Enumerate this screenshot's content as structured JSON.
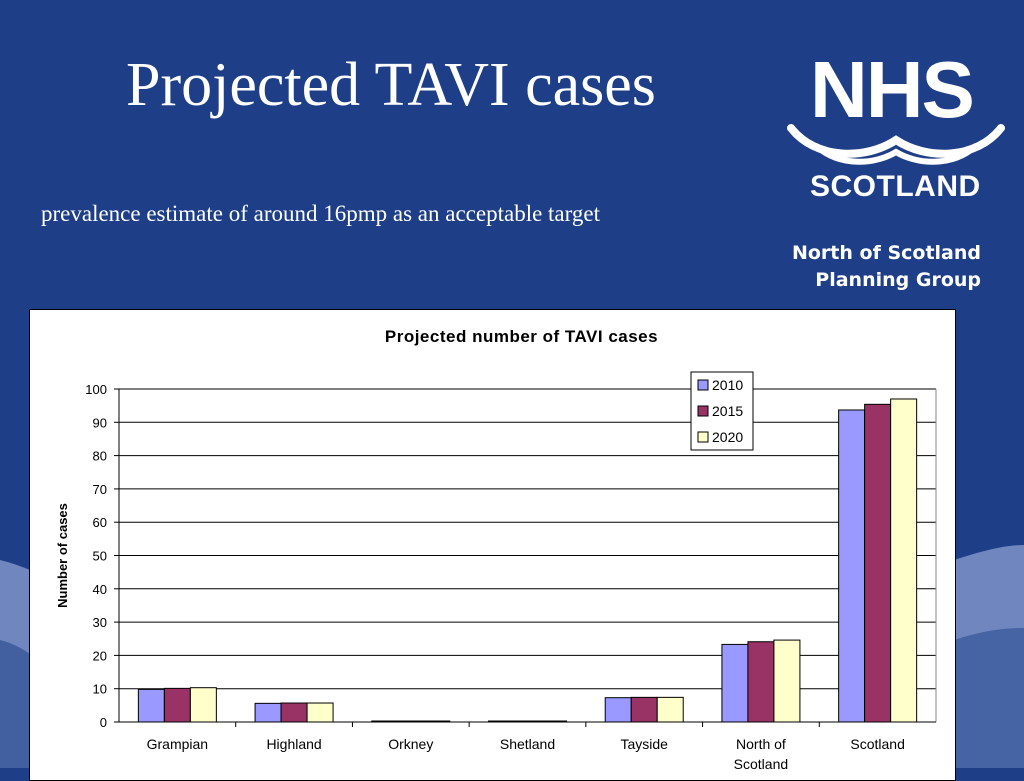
{
  "slide": {
    "title": "Projected TAVI cases",
    "subtitle": "prevalence estimate of around 16pmp as an acceptable target",
    "org_name_line1": "North of Scotland",
    "org_name_line2": "Planning Group"
  },
  "logo": {
    "nhs": "NHS",
    "scotland": "SCOTLAND"
  },
  "colors": {
    "background": "#1e3f87",
    "wave": "#6f86bf",
    "series_2010": "#9999ff",
    "series_2015": "#993366",
    "series_2020": "#ffffcc"
  },
  "chart_data": {
    "type": "bar",
    "title": "Projected number of TAVI cases",
    "xlabel": "",
    "ylabel": "Number of cases",
    "ylim": [
      0,
      100
    ],
    "yticks": [
      0,
      10,
      20,
      30,
      40,
      50,
      60,
      70,
      80,
      90,
      100
    ],
    "grid": true,
    "legend_position": "top-right",
    "categories": [
      "Grampian",
      "Highland",
      "Orkney",
      "Shetland",
      "Tayside",
      "North of Scotland",
      "Scotland"
    ],
    "category_lines": [
      [
        "Grampian"
      ],
      [
        "Highland"
      ],
      [
        "Orkney"
      ],
      [
        "Shetland"
      ],
      [
        "Tayside"
      ],
      [
        "North of",
        "Scotland"
      ],
      [
        "Scotland"
      ]
    ],
    "series": [
      {
        "name": "2010",
        "color": "#9999ff",
        "values": [
          9.8,
          5.6,
          0.3,
          0.3,
          7.3,
          23.3,
          93.7
        ]
      },
      {
        "name": "2015",
        "color": "#993366",
        "values": [
          10.1,
          5.7,
          0.3,
          0.3,
          7.4,
          24.1,
          95.4
        ]
      },
      {
        "name": "2020",
        "color": "#ffffcc",
        "values": [
          10.3,
          5.7,
          0.3,
          0.3,
          7.4,
          24.6,
          97.0
        ]
      }
    ]
  }
}
